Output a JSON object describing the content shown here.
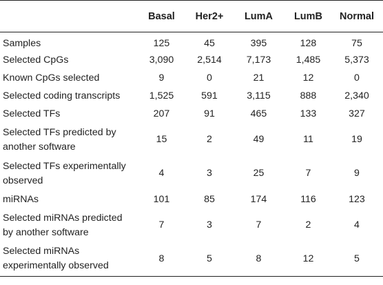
{
  "table": {
    "columns": [
      "",
      "Basal",
      "Her2+",
      "LumA",
      "LumB",
      "Normal"
    ],
    "rows": [
      {
        "label": "Samples",
        "values": [
          "125",
          "45",
          "395",
          "128",
          "75"
        ]
      },
      {
        "label": "Selected CpGs",
        "values": [
          "3,090",
          "2,514",
          "7,173",
          "1,485",
          "5,373"
        ]
      },
      {
        "label": "Known CpGs selected",
        "values": [
          "9",
          "0",
          "21",
          "12",
          "0"
        ]
      },
      {
        "label": "Selected coding transcripts",
        "values": [
          "1,525",
          "591",
          "3,115",
          "888",
          "2,340"
        ]
      },
      {
        "label": "Selected TFs",
        "values": [
          "207",
          "91",
          "465",
          "133",
          "327"
        ]
      },
      {
        "label_lines": [
          "Selected TFs predicted by",
          "another software"
        ],
        "values": [
          "15",
          "2",
          "49",
          "11",
          "19"
        ]
      },
      {
        "label_lines": [
          "Selected TFs experimentally",
          "observed"
        ],
        "values": [
          "4",
          "3",
          "25",
          "7",
          "9"
        ]
      },
      {
        "label": "miRNAs",
        "values": [
          "101",
          "85",
          "174",
          "116",
          "123"
        ]
      },
      {
        "label_lines": [
          "Selected miRNAs predicted",
          "by another software"
        ],
        "values": [
          "7",
          "3",
          "7",
          "2",
          "4"
        ]
      },
      {
        "label_lines": [
          "Selected miRNAs",
          "experimentally observed"
        ],
        "values": [
          "8",
          "5",
          "8",
          "12",
          "5"
        ]
      }
    ]
  }
}
